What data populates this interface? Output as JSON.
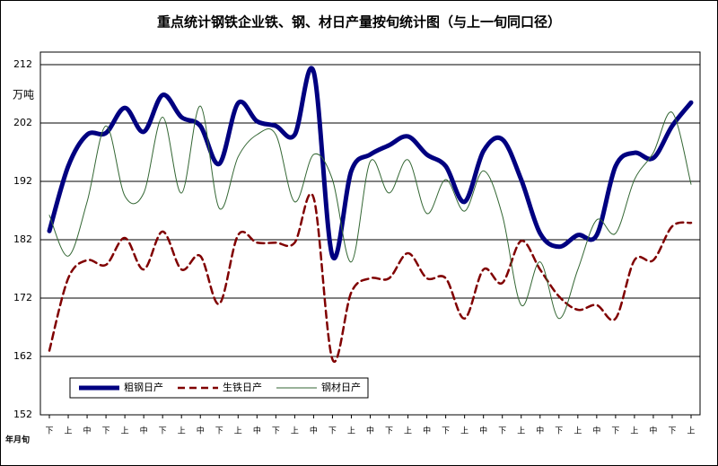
{
  "chart_data": {
    "type": "line",
    "title": "重点统计钢铁企业铁、钢、材日产量按旬统计图（与上一旬同口径）",
    "y_unit": "万吨",
    "x_label": "年月旬",
    "categories": [
      "下",
      "上",
      "中",
      "下",
      "上",
      "中",
      "下",
      "上",
      "中",
      "下",
      "上",
      "中",
      "下",
      "上",
      "中",
      "下",
      "上",
      "中",
      "下",
      "上",
      "中",
      "下",
      "上",
      "中",
      "下",
      "上",
      "中",
      "下",
      "上",
      "中",
      "下",
      "上",
      "中",
      "下",
      "上"
    ],
    "series": [
      {
        "name": "粗钢日产",
        "color": "#000080",
        "width": 5,
        "dash": "none",
        "values": [
          183.5,
          194.6,
          200,
          200.3,
          204.6,
          200.5,
          206.8,
          203,
          201.5,
          195,
          205.4,
          202.3,
          201.5,
          200,
          210.8,
          179.2,
          193.8,
          196.6,
          198.2,
          199.7,
          196.6,
          194.6,
          188.5,
          197.2,
          199.2,
          192.3,
          183.1,
          180.8,
          182.8,
          182.8,
          194.6,
          196.9,
          196,
          201.5,
          205.5
        ]
      },
      {
        "name": "生铁日产",
        "color": "#800000",
        "width": 2.5,
        "dash": "8,5",
        "values": [
          163,
          175.4,
          178.5,
          177.7,
          182.3,
          176.9,
          183.4,
          176.9,
          179.2,
          171,
          182.8,
          181.5,
          181.5,
          181.5,
          189.2,
          161.5,
          173,
          175.4,
          175.4,
          179.7,
          175.4,
          175.4,
          168.5,
          176.9,
          174.6,
          181.8,
          176.9,
          172.3,
          170,
          170.8,
          168.5,
          178.5,
          178.5,
          184.3,
          184.9
        ]
      },
      {
        "name": "钢材日产",
        "color": "#336633",
        "width": 1,
        "dash": "none",
        "values": [
          186.2,
          179.2,
          188.5,
          201.5,
          189.5,
          190,
          203,
          190,
          204.9,
          187.4,
          196.2,
          200,
          200,
          188.5,
          196.6,
          192.3,
          178.2,
          195.4,
          190,
          195.7,
          186.5,
          192.3,
          186.9,
          193.8,
          186.2,
          170.8,
          178.2,
          168.5,
          176.9,
          185.4,
          183.1,
          192.3,
          196.9,
          203.8,
          191.5
        ]
      }
    ],
    "ylim": [
      152,
      212
    ],
    "yticks": [
      152,
      162,
      172,
      182,
      192,
      202,
      212
    ],
    "grid": true
  }
}
